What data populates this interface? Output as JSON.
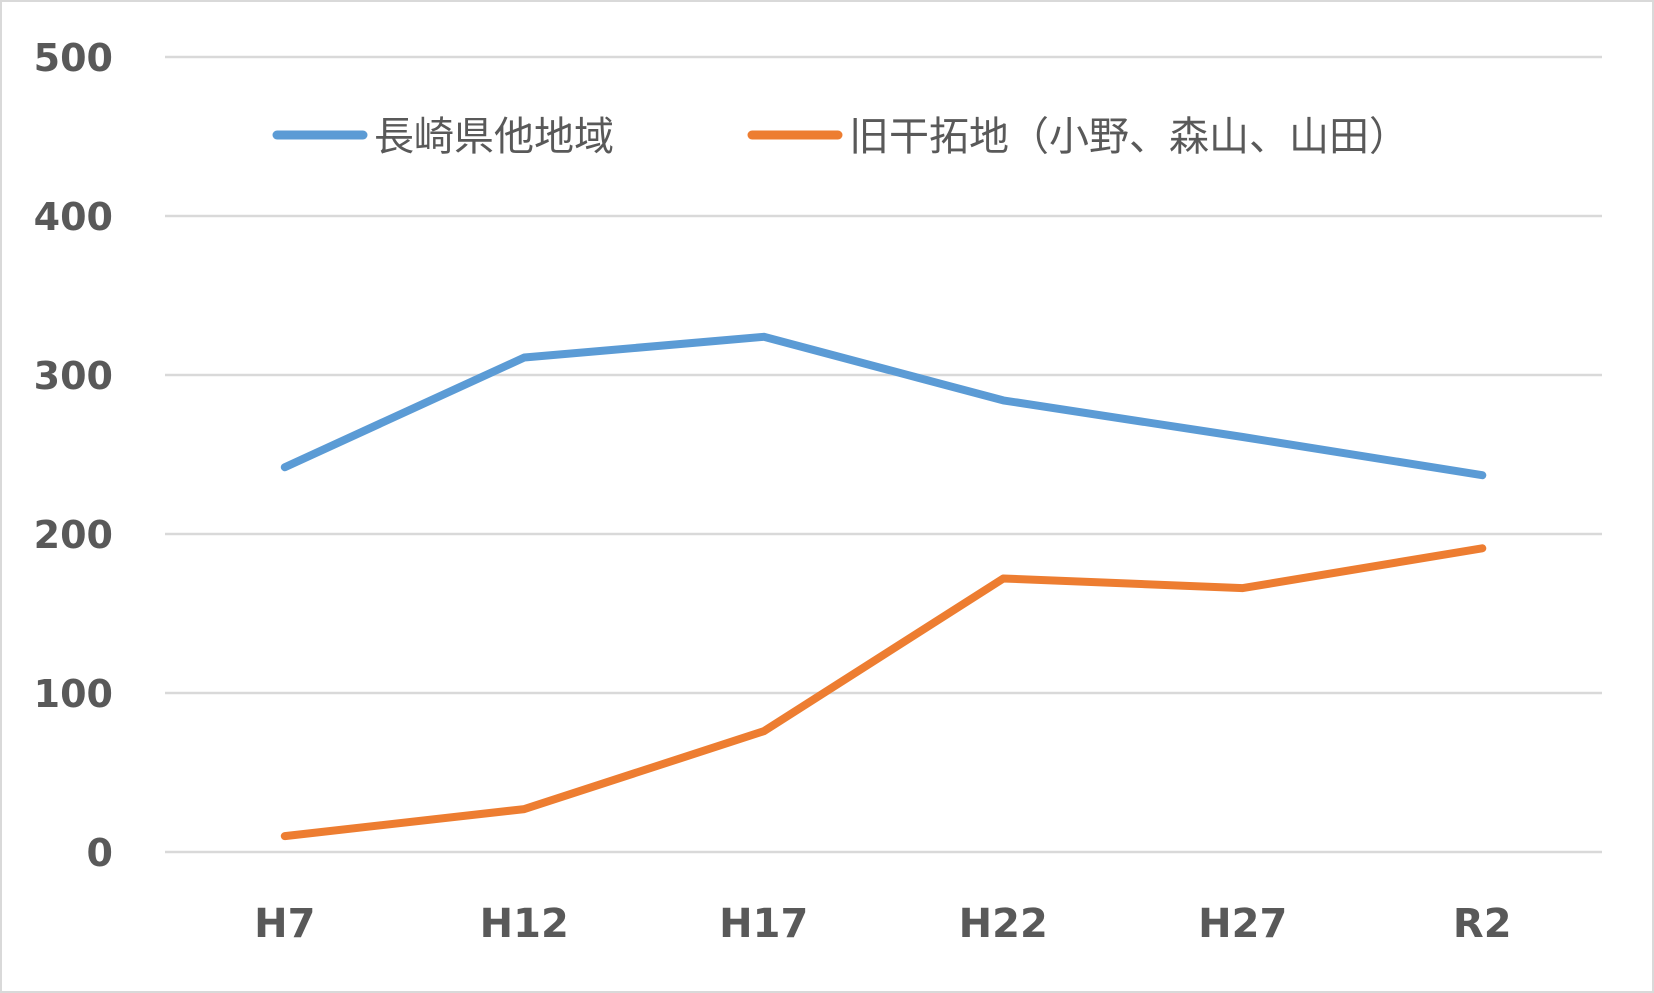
{
  "chart_data": {
    "type": "line",
    "title": "",
    "xlabel": "",
    "ylabel": "",
    "categories": [
      "H7",
      "H12",
      "H17",
      "H22",
      "H27",
      "R2"
    ],
    "series": [
      {
        "name": "長崎県他地域",
        "color": "#5b9bd5",
        "values": [
          242,
          311,
          324,
          284,
          261,
          237
        ]
      },
      {
        "name": "旧干拓地（小野、森山、山田）",
        "color": "#ed7d31",
        "values": [
          10,
          27,
          76,
          172,
          166,
          191
        ]
      }
    ],
    "ylim": [
      0,
      500
    ],
    "yticks": [
      "0",
      "100",
      "200",
      "300",
      "400",
      "500"
    ],
    "grid": true,
    "legend_position": "top-inside"
  },
  "colors": {
    "grid": "#d9d9d9",
    "text": "#595959",
    "border": "#d9d9d9"
  }
}
